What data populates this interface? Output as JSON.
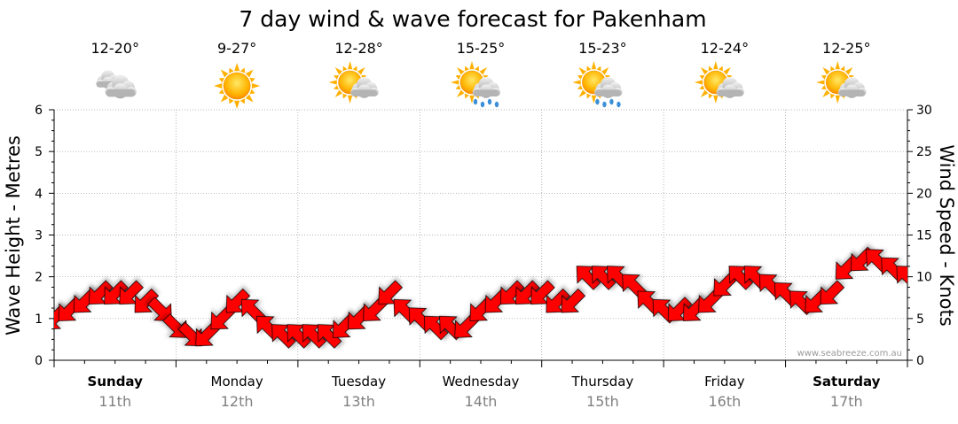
{
  "page": {
    "title": "7 day wind & wave forecast for Pakenham",
    "watermark": "www.seabreeze.com.au"
  },
  "days": [
    {
      "name": "Sunday",
      "date": "11th",
      "temps": "12-20°",
      "icon": "cloudy-icon",
      "bold": true
    },
    {
      "name": "Monday",
      "date": "12th",
      "temps": "9-27°",
      "icon": "sunny-icon",
      "bold": false
    },
    {
      "name": "Tuesday",
      "date": "13th",
      "temps": "12-28°",
      "icon": "partly-cloudy-icon",
      "bold": false
    },
    {
      "name": "Wednesday",
      "date": "14th",
      "temps": "15-25°",
      "icon": "partly-cloudy-showers-icon",
      "bold": false
    },
    {
      "name": "Thursday",
      "date": "15th",
      "temps": "15-23°",
      "icon": "partly-cloudy-showers-icon",
      "bold": false
    },
    {
      "name": "Friday",
      "date": "16th",
      "temps": "12-24°",
      "icon": "partly-cloudy-icon",
      "bold": false
    },
    {
      "name": "Saturday",
      "date": "17th",
      "temps": "12-25°",
      "icon": "partly-cloudy-icon",
      "bold": true
    }
  ],
  "chart_data": {
    "type": "line",
    "title": "7 day wind & wave forecast for Pakenham",
    "ylabel_left": "Wave Height - Metres",
    "ylabel_right": "Wind Speed - Knots",
    "ylim_left": [
      0,
      6
    ],
    "ylim_right": [
      0,
      30
    ],
    "yticks_left": [
      0,
      1,
      2,
      3,
      4,
      5,
      6
    ],
    "yticks_right": [
      0,
      5,
      10,
      15,
      20,
      25,
      30
    ],
    "grid": true,
    "series": [
      {
        "color": "#ff0000",
        "marker": "wind-direction-arrow",
        "x_hours": [
          0,
          3,
          6,
          9,
          12,
          15,
          18,
          21,
          24,
          27,
          30,
          33,
          36,
          39,
          42,
          45,
          48,
          51,
          54,
          57,
          60,
          63,
          66,
          69,
          72,
          75,
          78,
          81,
          84,
          87,
          90,
          93,
          96,
          99,
          102,
          105,
          108,
          111,
          114,
          117,
          120,
          123,
          126,
          129,
          132,
          135,
          138,
          141,
          144,
          147,
          150,
          153,
          156,
          159,
          162,
          165,
          168
        ],
        "values": [
          5,
          6,
          7,
          8,
          8,
          8,
          7,
          6,
          4,
          3,
          3,
          5,
          7,
          6,
          4,
          3,
          3,
          3,
          3,
          4,
          5,
          6,
          8,
          6,
          5,
          4,
          4,
          4,
          6,
          7,
          8,
          8,
          8,
          7,
          7,
          10,
          10,
          10,
          9,
          7,
          6,
          6,
          6,
          7,
          9,
          10,
          10,
          9,
          8,
          7,
          7,
          8,
          11,
          12,
          12,
          11,
          10
        ],
        "directions_deg": [
          225,
          225,
          225,
          225,
          225,
          225,
          225,
          135,
          135,
          135,
          225,
          225,
          225,
          315,
          315,
          315,
          315,
          315,
          315,
          225,
          225,
          225,
          225,
          315,
          315,
          315,
          315,
          225,
          225,
          225,
          225,
          225,
          225,
          225,
          225,
          315,
          315,
          315,
          315,
          315,
          315,
          225,
          225,
          225,
          225,
          315,
          315,
          315,
          315,
          315,
          225,
          225,
          225,
          225,
          315,
          315,
          315
        ]
      }
    ]
  }
}
